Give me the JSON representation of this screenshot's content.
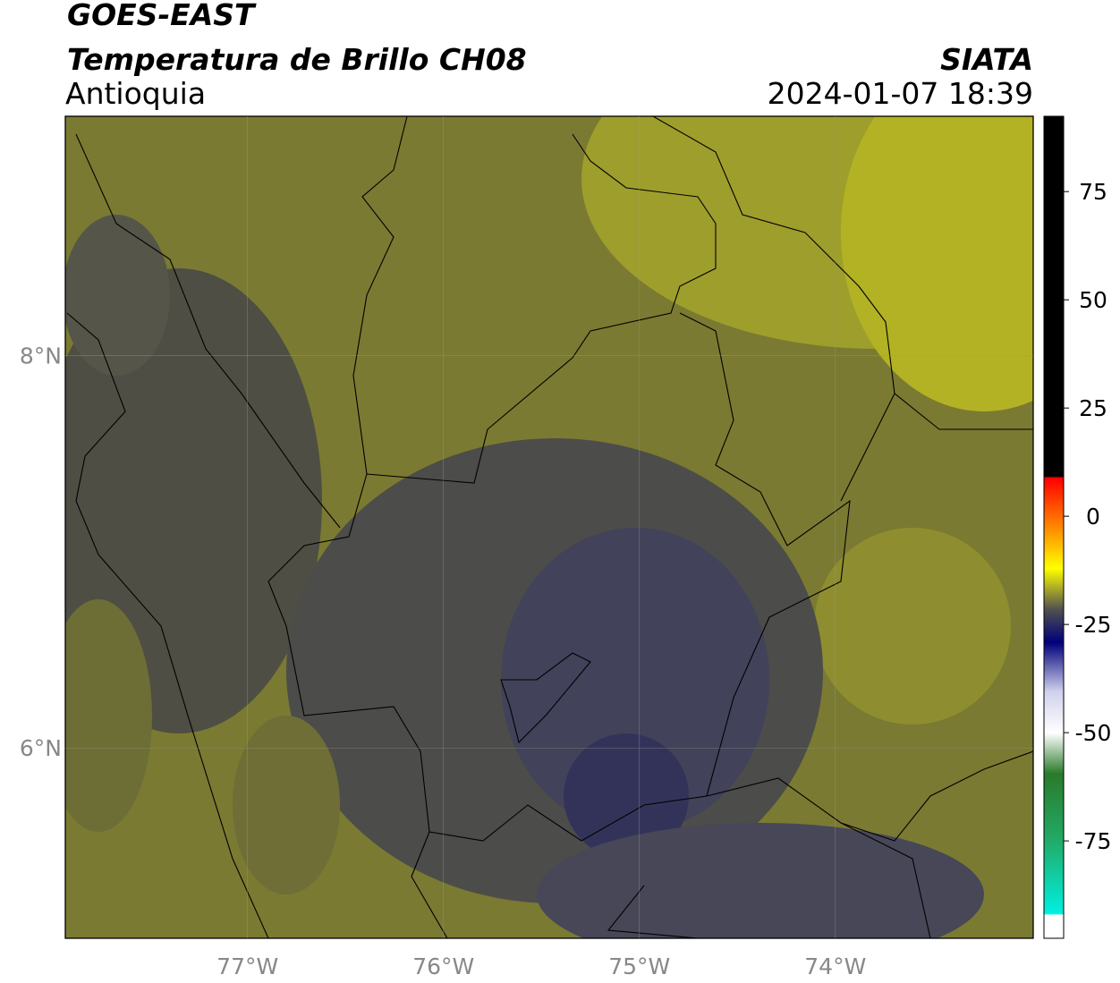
{
  "header": {
    "title": "GOES-EAST",
    "subtitle": "Temperatura de Brillo CH08",
    "region": "Antioquia",
    "source": "SIATA",
    "timestamp": "2024-01-07 18:39"
  },
  "map": {
    "lonlim": [
      -77.93,
      -72.99
    ],
    "latlim": [
      5.03,
      9.22
    ],
    "lon_ticks": [
      {
        "value": -77,
        "label": "77°W"
      },
      {
        "value": -76,
        "label": "76°W"
      },
      {
        "value": -75,
        "label": "75°W"
      },
      {
        "value": -74,
        "label": "74°W"
      }
    ],
    "lat_ticks": [
      {
        "value": 8,
        "label": "8°N"
      },
      {
        "value": 6,
        "label": "6°N"
      }
    ]
  },
  "colorbar": {
    "lim": [
      -97.5,
      92.4
    ],
    "ticks": [
      75,
      50,
      25,
      0,
      -25,
      -50,
      -75
    ]
  }
}
